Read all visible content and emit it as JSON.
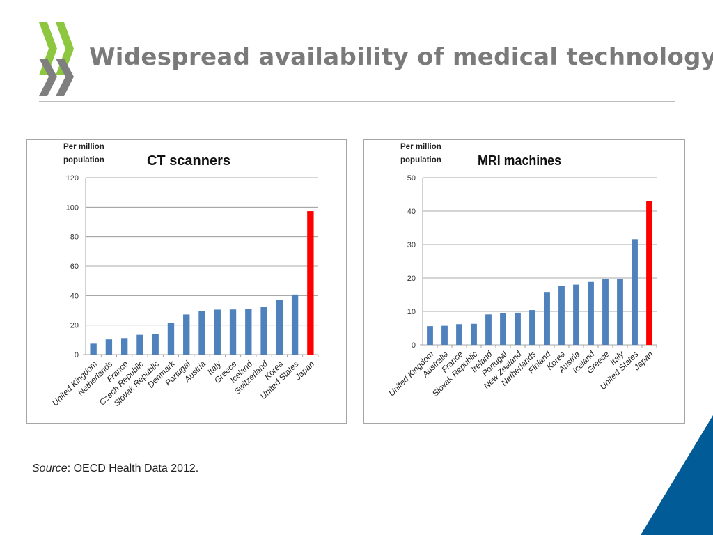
{
  "page": {
    "title": "Widespread availability of medical technology",
    "source_label": "Source",
    "source_text": ": OECD Health Data 2012."
  },
  "colors": {
    "bar": "#4f81bd",
    "highlight": "#ff0000",
    "title": "#7a7a7a",
    "logo_green": "#8dc63f",
    "logo_gray": "#7f7f7f",
    "corner_blue": "#005b96"
  },
  "chart_data": [
    {
      "type": "bar",
      "title": "CT scanners",
      "ylabel": "Per million population",
      "ylabel_lines": [
        "Per million",
        "population"
      ],
      "ylim": [
        0,
        120
      ],
      "yticks": [
        0,
        20,
        40,
        60,
        80,
        100,
        120
      ],
      "categories": [
        "United Kingdom",
        "Netherlands",
        "France",
        "Czech Republic",
        "Slovak Republic",
        "Denmark",
        "Portugal",
        "Austria",
        "Italy",
        "Greece",
        "Iceland",
        "Switzerland",
        "Korea",
        "United States",
        "Japan"
      ],
      "values": [
        7.4,
        10.3,
        11.2,
        13.4,
        14.0,
        21.7,
        27.2,
        29.6,
        30.5,
        30.6,
        31.1,
        32.2,
        37.1,
        40.7,
        97.3
      ],
      "highlight": [
        "Japan"
      ],
      "grid": true
    },
    {
      "type": "bar",
      "title": "MRI machines",
      "ylabel": "Per million population",
      "ylabel_lines": [
        "Per million",
        "population"
      ],
      "ylim": [
        0,
        50
      ],
      "yticks": [
        0,
        10,
        20,
        30,
        40,
        50
      ],
      "categories": [
        "United Kingdom",
        "Australia",
        "France",
        "Slovak Republic",
        "Ireland",
        "Portugal",
        "New Zealand",
        "Netherlands",
        "Finland",
        "Korea",
        "Austria",
        "Iceland",
        "Greece",
        "Italy",
        "United States",
        "Japan"
      ],
      "values": [
        5.6,
        5.7,
        6.2,
        6.3,
        9.1,
        9.4,
        9.6,
        10.4,
        15.8,
        17.5,
        18.0,
        18.8,
        19.7,
        19.7,
        31.6,
        43.1
      ],
      "highlight": [
        "Japan"
      ],
      "grid": true
    }
  ]
}
